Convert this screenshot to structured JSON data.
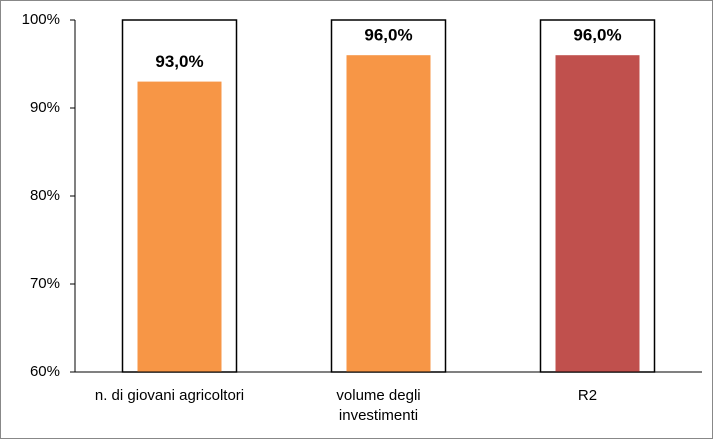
{
  "chart_data": {
    "type": "bar",
    "categories": [
      "n. di giovani agricoltori",
      "volume degli investimenti",
      "R2"
    ],
    "values": [
      93,
      96,
      96
    ],
    "value_labels": [
      "93,0%",
      "96,0%",
      "96,0%"
    ],
    "colors": [
      "#f79646",
      "#f79646",
      "#c0504d"
    ],
    "ylim": [
      60,
      100
    ],
    "yticks": [
      {
        "value": 60,
        "label": "60%"
      },
      {
        "value": 70,
        "label": "70%"
      },
      {
        "value": 80,
        "label": "80%"
      },
      {
        "value": 90,
        "label": "90%"
      },
      {
        "value": 100,
        "label": "100%"
      }
    ],
    "grid": false
  }
}
